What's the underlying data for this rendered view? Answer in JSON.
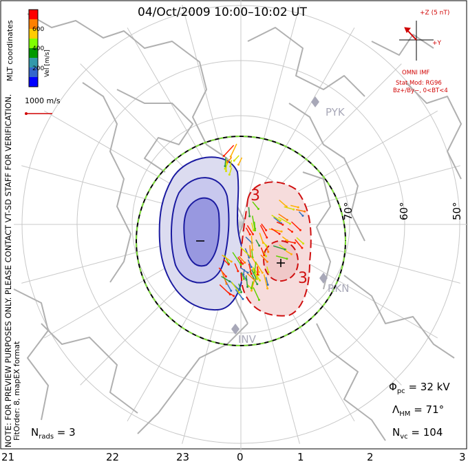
{
  "title": "04/Oct/2009  10:00–10:02 UT",
  "colorbar": {
    "label": "Vel [m/s]",
    "ticks": [
      "600",
      "400",
      "200"
    ],
    "colors": [
      "#ff0000",
      "#ff8000",
      "#ffcc00",
      "#80ff00",
      "#009900",
      "#3399aa",
      "#3366cc",
      "#0000ff"
    ]
  },
  "coord_label": "MLT coordinates",
  "watermark": "NOTE: FOR PREVIEW PURPOSES ONLY. PLEASE CONTACT VT-SD STAFF FOR VERIFICATION.",
  "fit_order": "FitOrder: 8, mapEX format",
  "scale_vector": "1000 m/s",
  "imf": {
    "z_label": "+Z (5 nT)",
    "y_label": "+Y",
    "source": "OMNI IMF",
    "stat_model": "Stat Mod: RG96",
    "condition": "Bz+/By−, 0<BT<4"
  },
  "stations": [
    "PYK",
    "INV",
    "RKN"
  ],
  "latitude_labels": [
    "50°",
    "60°",
    "70°"
  ],
  "potential_labels": {
    "min": "−",
    "max": "+",
    "contour": "3"
  },
  "mlt_ticks": [
    "21",
    "22",
    "23",
    "0",
    "1",
    "2",
    "3"
  ],
  "stats": {
    "phi_pc": "Φ",
    "phi_pc_sub": "pc",
    "phi_pc_val": " = 32 kV",
    "lambda_hm": "Λ",
    "lambda_hm_sub": "HM",
    "lambda_hm_val": " = 71°",
    "n_vc": "N",
    "n_vc_sub": "vc",
    "n_vc_val": " = 104",
    "n_rads": "N",
    "n_rads_sub": "rads",
    "n_rads_val": " = 3"
  }
}
